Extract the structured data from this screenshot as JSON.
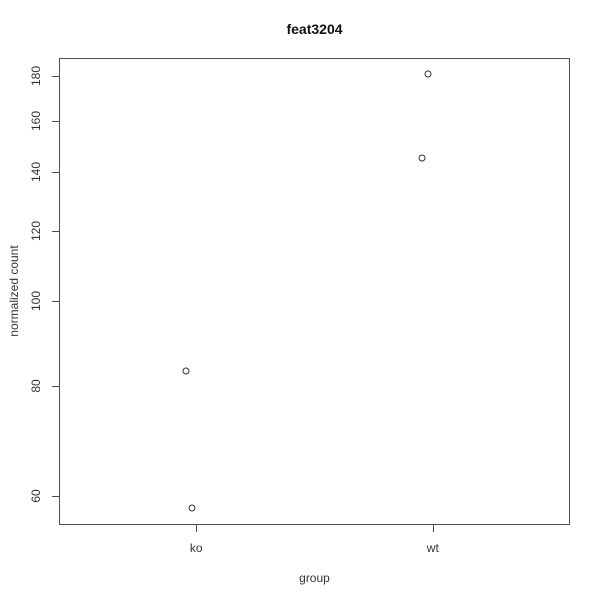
{
  "figure": {
    "background": "#ffffff",
    "axis_color": "#4d4d4d",
    "text_color": "#333333",
    "point_stroke_color": "#333333"
  },
  "chart_data": {
    "type": "scatter",
    "title": "feat3204",
    "xlabel": "group",
    "ylabel": "normalized count",
    "categories": [
      "ko",
      "wt"
    ],
    "y_scale": "log",
    "grid": false,
    "legend": false,
    "y_ticks": [
      60,
      80,
      100,
      120,
      140,
      160,
      180
    ],
    "ylim": [
      55.6,
      188.8
    ],
    "xlim": [
      0.42,
      2.58
    ],
    "points": [
      {
        "group": "ko",
        "x": 0.957,
        "value": 83.1
      },
      {
        "group": "ko",
        "x": 0.982,
        "value": 58.1
      },
      {
        "group": "wt",
        "x": 1.954,
        "value": 145.2
      },
      {
        "group": "wt",
        "x": 1.98,
        "value": 181.0
      }
    ]
  }
}
